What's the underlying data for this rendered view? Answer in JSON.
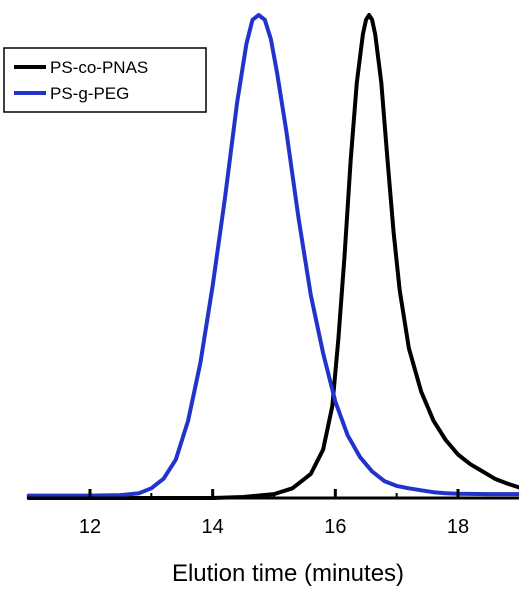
{
  "chart_data": {
    "type": "line",
    "title": "",
    "xlabel": "Elution time (minutes)",
    "ylabel": "",
    "xlim": [
      11,
      19
    ],
    "ylim": [
      0,
      1
    ],
    "grid": false,
    "legend": {
      "position": "top-left"
    },
    "x_ticks": [
      {
        "value": 12,
        "label": "12"
      },
      {
        "value": 14,
        "label": "14"
      },
      {
        "value": 16,
        "label": "16"
      },
      {
        "value": 18,
        "label": "18"
      }
    ],
    "series": [
      {
        "name": "PS-co-PNAS",
        "color": "#000000",
        "points": [
          [
            11.0,
            0.0
          ],
          [
            12.0,
            0.0
          ],
          [
            13.0,
            0.0
          ],
          [
            14.0,
            0.0
          ],
          [
            14.5,
            0.002
          ],
          [
            15.0,
            0.008
          ],
          [
            15.3,
            0.02
          ],
          [
            15.6,
            0.05
          ],
          [
            15.8,
            0.1
          ],
          [
            15.95,
            0.19
          ],
          [
            16.05,
            0.33
          ],
          [
            16.15,
            0.5
          ],
          [
            16.25,
            0.7
          ],
          [
            16.35,
            0.86
          ],
          [
            16.45,
            0.96
          ],
          [
            16.5,
            0.99
          ],
          [
            16.55,
            1.0
          ],
          [
            16.6,
            0.99
          ],
          [
            16.65,
            0.96
          ],
          [
            16.75,
            0.86
          ],
          [
            16.85,
            0.7
          ],
          [
            16.95,
            0.55
          ],
          [
            17.05,
            0.43
          ],
          [
            17.2,
            0.31
          ],
          [
            17.4,
            0.22
          ],
          [
            17.6,
            0.16
          ],
          [
            17.8,
            0.12
          ],
          [
            18.0,
            0.09
          ],
          [
            18.2,
            0.07
          ],
          [
            18.4,
            0.055
          ],
          [
            18.6,
            0.04
          ],
          [
            18.8,
            0.03
          ],
          [
            19.0,
            0.022
          ]
        ]
      },
      {
        "name": "PS-g-PEG",
        "color": "#2233cc",
        "points": [
          [
            11.0,
            0.005
          ],
          [
            12.0,
            0.005
          ],
          [
            12.5,
            0.006
          ],
          [
            12.8,
            0.01
          ],
          [
            13.0,
            0.02
          ],
          [
            13.2,
            0.04
          ],
          [
            13.4,
            0.08
          ],
          [
            13.6,
            0.16
          ],
          [
            13.8,
            0.28
          ],
          [
            14.0,
            0.44
          ],
          [
            14.2,
            0.62
          ],
          [
            14.4,
            0.82
          ],
          [
            14.55,
            0.94
          ],
          [
            14.65,
            0.99
          ],
          [
            14.75,
            1.0
          ],
          [
            14.85,
            0.99
          ],
          [
            14.95,
            0.95
          ],
          [
            15.05,
            0.88
          ],
          [
            15.2,
            0.76
          ],
          [
            15.4,
            0.58
          ],
          [
            15.6,
            0.42
          ],
          [
            15.8,
            0.3
          ],
          [
            16.0,
            0.2
          ],
          [
            16.2,
            0.13
          ],
          [
            16.4,
            0.085
          ],
          [
            16.6,
            0.055
          ],
          [
            16.8,
            0.035
          ],
          [
            17.0,
            0.025
          ],
          [
            17.2,
            0.02
          ],
          [
            17.4,
            0.016
          ],
          [
            17.6,
            0.012
          ],
          [
            17.8,
            0.01
          ],
          [
            18.0,
            0.009
          ],
          [
            18.5,
            0.008
          ],
          [
            19.0,
            0.008
          ]
        ]
      }
    ]
  }
}
